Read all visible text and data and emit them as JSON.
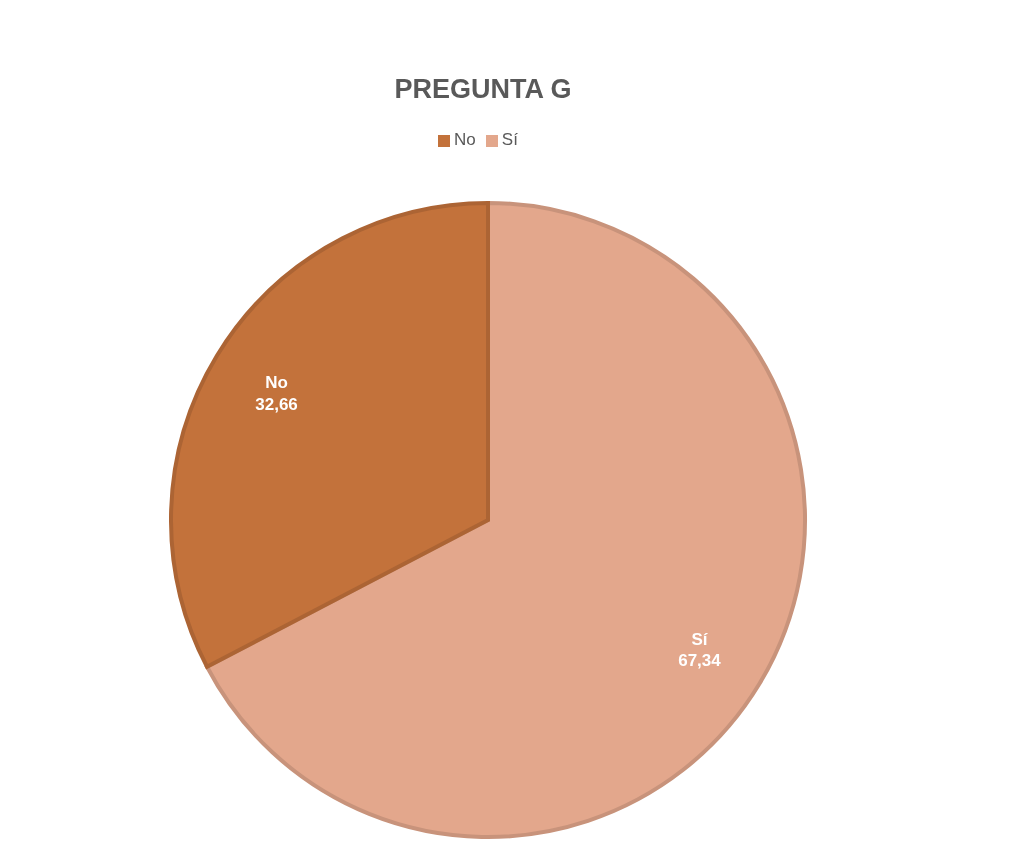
{
  "chart_data": {
    "type": "pie",
    "title": "PREGUNTA G",
    "categories": [
      "Sí",
      "No"
    ],
    "values": [
      67.34,
      32.66
    ],
    "value_labels": [
      "67,34",
      "32,66"
    ],
    "colors": [
      "#e3a78c",
      "#c3723b"
    ],
    "legend": "top"
  }
}
